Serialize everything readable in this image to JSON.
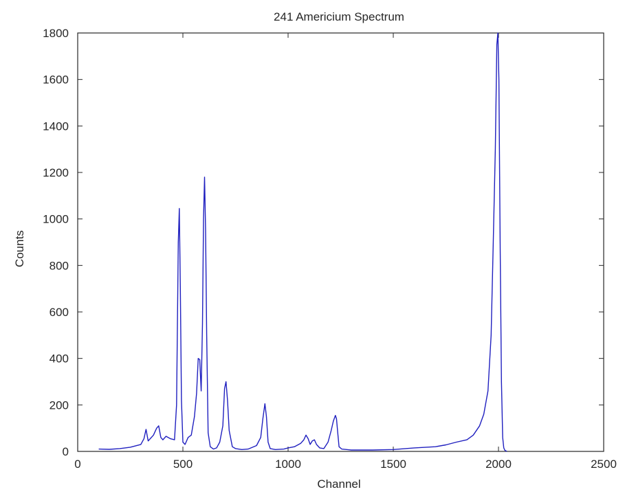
{
  "chart_data": {
    "type": "line",
    "title": "241 Americium Spectrum",
    "xlabel": "Channel",
    "ylabel": "Counts",
    "xlim": [
      0,
      2500
    ],
    "ylim": [
      0,
      1800
    ],
    "xticks": [
      0,
      500,
      1000,
      1500,
      2000,
      2500
    ],
    "yticks": [
      0,
      200,
      400,
      600,
      800,
      1000,
      1200,
      1400,
      1600,
      1800
    ],
    "grid": false,
    "colors": {
      "line": "#1f1fbf",
      "axes": "#262626",
      "background": "#ffffff"
    },
    "series": [
      {
        "x": [
          100,
          150,
          200,
          250,
          300,
          315,
          325,
          335,
          345,
          360,
          375,
          385,
          395,
          405,
          420,
          440,
          460,
          470,
          478,
          483,
          488,
          493,
          500,
          510,
          525,
          540,
          555,
          565,
          573,
          580,
          587,
          593,
          598,
          603,
          608,
          613,
          620,
          630,
          645,
          660,
          675,
          690,
          698,
          705,
          712,
          720,
          735,
          750,
          780,
          810,
          850,
          870,
          880,
          890,
          897,
          905,
          915,
          940,
          980,
          1000,
          1030,
          1060,
          1075,
          1085,
          1095,
          1105,
          1115,
          1125,
          1135,
          1150,
          1170,
          1190,
          1205,
          1215,
          1225,
          1230,
          1235,
          1242,
          1255,
          1300,
          1400,
          1500,
          1600,
          1700,
          1750,
          1800,
          1850,
          1880,
          1910,
          1930,
          1950,
          1965,
          1975,
          1985,
          1992,
          1997,
          2002,
          2008,
          2014,
          2020,
          2025,
          2030,
          2040
        ],
        "y": [
          10,
          9,
          12,
          18,
          30,
          55,
          95,
          45,
          55,
          70,
          100,
          110,
          60,
          50,
          65,
          55,
          50,
          200,
          900,
          1045,
          700,
          220,
          40,
          30,
          60,
          70,
          150,
          250,
          400,
          395,
          260,
          550,
          1000,
          1180,
          950,
          500,
          80,
          20,
          10,
          15,
          40,
          110,
          270,
          300,
          220,
          90,
          20,
          12,
          8,
          10,
          25,
          60,
          140,
          205,
          150,
          40,
          12,
          8,
          10,
          15,
          20,
          35,
          50,
          70,
          55,
          30,
          45,
          50,
          30,
          15,
          12,
          40,
          90,
          130,
          155,
          140,
          90,
          20,
          10,
          6,
          6,
          8,
          15,
          20,
          28,
          40,
          50,
          70,
          110,
          160,
          260,
          500,
          900,
          1300,
          1750,
          1800,
          1600,
          900,
          300,
          60,
          15,
          5,
          0
        ]
      }
    ]
  }
}
